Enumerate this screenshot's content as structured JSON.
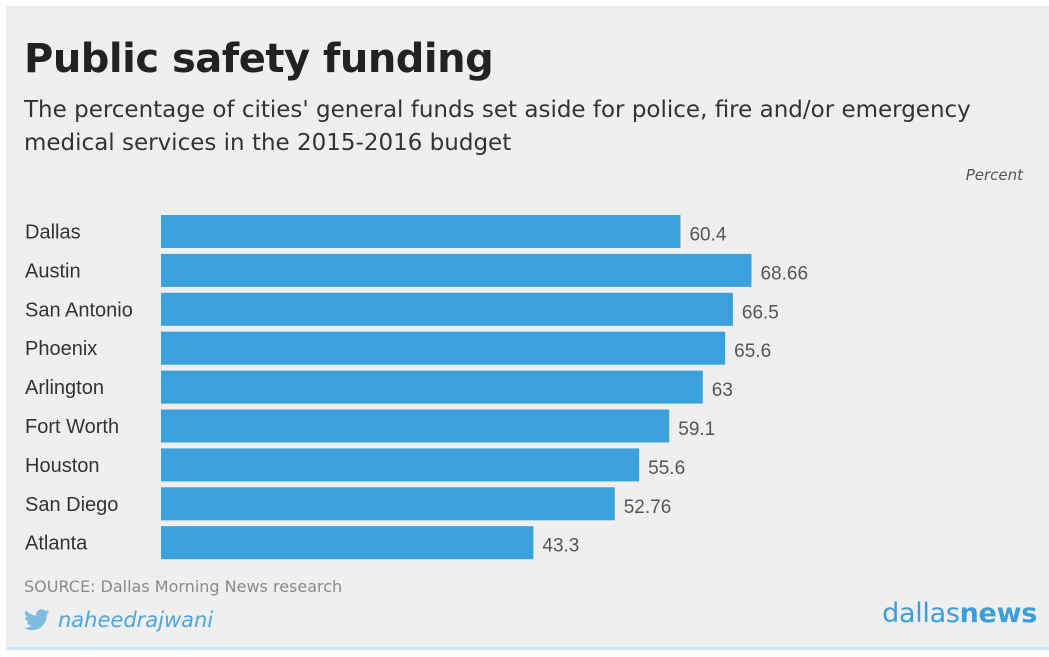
{
  "colors": {
    "bar": "#3ba1dd",
    "label": "#333333",
    "value": "#555555",
    "brand": "#3a9fda",
    "twitter": "#7fbce0"
  },
  "footer": {
    "source": "SOURCE: Dallas Morning News research",
    "twitter_icon": "twitter-bird-icon",
    "handle": "naheedrajwani",
    "brand_part1": "dallas",
    "brand_part2": "news"
  },
  "chart_data": {
    "type": "bar",
    "orientation": "horizontal",
    "title": "Public safety funding",
    "subtitle": "The percentage of cities' general funds set aside for police, fire and/or emergency medical services in the 2015-2016 budget",
    "unit_label": "Percent",
    "categories": [
      "Dallas",
      "Austin",
      "San Antonio",
      "Phoenix",
      "Arlington",
      "Fort Worth",
      "Houston",
      "San Diego",
      "Atlanta"
    ],
    "values": [
      60.4,
      68.66,
      66.5,
      65.6,
      63,
      59.1,
      55.6,
      52.76,
      43.3
    ],
    "value_labels": [
      "60.4",
      "68.66",
      "66.5",
      "65.6",
      "63",
      "59.1",
      "55.6",
      "52.76",
      "43.3"
    ],
    "xlim": [
      0,
      100
    ],
    "grid": false,
    "legend": "none"
  }
}
